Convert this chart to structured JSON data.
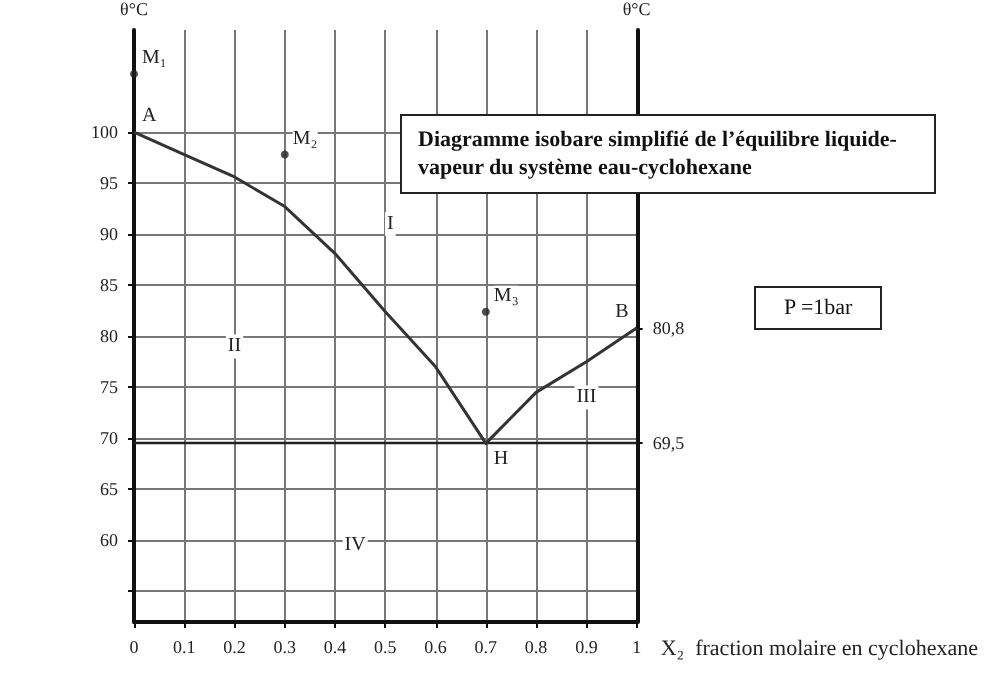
{
  "chart_data": {
    "type": "line",
    "title": "Diagramme isobare simplifié de l’équilibre liquide-vapeur du système eau-cyclohexane",
    "xlabel": "X₂  fraction molaire en cyclohexane",
    "ylabel": "θ°C",
    "y2label": "θ°C",
    "xlim": [
      0,
      1
    ],
    "xticks": [
      0,
      0.1,
      0.2,
      0.3,
      0.4,
      0.5,
      0.6,
      0.7,
      0.8,
      0.9,
      1
    ],
    "ylim": [
      52,
      110
    ],
    "yticks": [
      {
        "value": 55,
        "label": null
      },
      60,
      65,
      70,
      75,
      80,
      85,
      90,
      95,
      100
    ],
    "y2lim": [
      52,
      110
    ],
    "y2ticks": [
      {
        "value": 69.5,
        "label": "69,5"
      },
      {
        "value": 80.8,
        "label": "80,8"
      }
    ],
    "grid": true,
    "legend": false,
    "series": [
      {
        "type": "line",
        "color": "#333333",
        "marker": "none",
        "line_style": "solid",
        "x": [
          0,
          0.1,
          0.2,
          0.3,
          0.4,
          0.5,
          0.6,
          0.7,
          0.8,
          0.9,
          1
        ],
        "values": [
          100,
          97.8,
          95.6,
          92.7,
          88.1,
          82.4,
          77,
          69.5,
          74.5,
          77.5,
          80.8
        ]
      },
      {
        "type": "scatter",
        "color": "#222222",
        "marker": "circle",
        "x": [
          0,
          0.3,
          0.7
        ],
        "values": [
          105.7,
          97.8,
          82.4
        ]
      }
    ],
    "ref_lines": [
      {
        "axis": "y",
        "value": 69.5,
        "color": "#222222"
      }
    ],
    "annotations": [
      {
        "text": "A",
        "x": 0,
        "y": 100
      },
      {
        "text": "B",
        "x": 1,
        "y": 80.8
      },
      {
        "text": "H",
        "x": 0.7,
        "y": 69.5
      },
      {
        "text": "M₁",
        "x": 0,
        "y": 105.7
      },
      {
        "text": "M₂",
        "x": 0.3,
        "y": 97.8
      },
      {
        "text": "M₃",
        "x": 0.7,
        "y": 82.4
      },
      "I",
      "II",
      "III",
      "IV",
      "P =1bar"
    ]
  }
}
